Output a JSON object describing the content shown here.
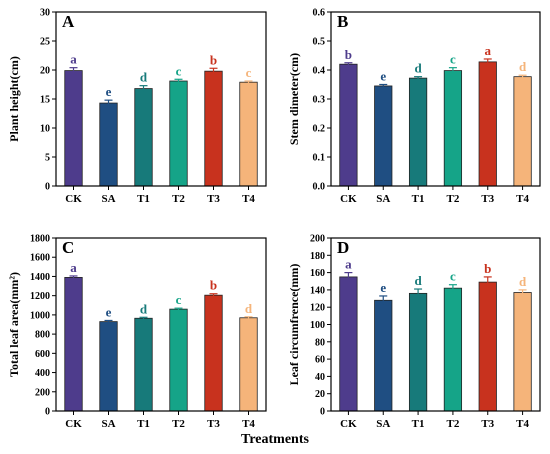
{
  "figure": {
    "x_title": "Treatments",
    "colors": [
      "#4e3c8c",
      "#1f4e82",
      "#177a7a",
      "#15a488",
      "#c8321e",
      "#f5b47a"
    ]
  },
  "chart_data": [
    {
      "type": "bar",
      "panel_label": "A",
      "categories": [
        "CK",
        "SA",
        "T1",
        "T2",
        "T3",
        "T4"
      ],
      "values": [
        19.9,
        14.3,
        16.8,
        18.1,
        19.8,
        17.9
      ],
      "errors": [
        0.5,
        0.5,
        0.5,
        0.3,
        0.5,
        0.2
      ],
      "significance": [
        "a",
        "e",
        "d",
        "c",
        "b",
        "c"
      ],
      "ylabel": "Plant height(cm)",
      "ylim": [
        0,
        30
      ],
      "yticks": [
        0,
        5,
        10,
        15,
        20,
        25,
        30
      ],
      "ytick_labels": [
        "0",
        "5",
        "10",
        "15",
        "20",
        "25",
        "30"
      ]
    },
    {
      "type": "bar",
      "panel_label": "B",
      "categories": [
        "CK",
        "SA",
        "T1",
        "T2",
        "T3",
        "T4"
      ],
      "values": [
        0.42,
        0.345,
        0.372,
        0.398,
        0.428,
        0.377
      ],
      "errors": [
        0.005,
        0.005,
        0.005,
        0.01,
        0.01,
        0.005
      ],
      "significance": [
        "b",
        "e",
        "d",
        "c",
        "a",
        "d"
      ],
      "ylabel": "Stem dimeter(cm)",
      "ylim": [
        0,
        0.6
      ],
      "yticks": [
        0,
        0.1,
        0.2,
        0.3,
        0.4,
        0.5,
        0.6
      ],
      "ytick_labels": [
        "0.0",
        "0.1",
        "0.2",
        "0.3",
        "0.4",
        "0.5",
        "0.6"
      ]
    },
    {
      "type": "bar",
      "panel_label": "C",
      "categories": [
        "CK",
        "SA",
        "T1",
        "T2",
        "T3",
        "T4"
      ],
      "values": [
        1390,
        930,
        965,
        1060,
        1205,
        970
      ],
      "errors": [
        15,
        12,
        10,
        10,
        15,
        10
      ],
      "significance": [
        "a",
        "e",
        "d",
        "c",
        "b",
        "d"
      ],
      "ylabel": "Total leaf area(mm²)",
      "ylim": [
        0,
        1800
      ],
      "yticks": [
        0,
        200,
        400,
        600,
        800,
        1000,
        1200,
        1400,
        1600,
        1800
      ],
      "ytick_labels": [
        "0",
        "200",
        "400",
        "600",
        "800",
        "1000",
        "1200",
        "1400",
        "1600",
        "1800"
      ]
    },
    {
      "type": "bar",
      "panel_label": "D",
      "categories": [
        "CK",
        "SA",
        "T1",
        "T2",
        "T3",
        "T4"
      ],
      "values": [
        155,
        128,
        136,
        142,
        149,
        137
      ],
      "errors": [
        5,
        5,
        5,
        4,
        6,
        3
      ],
      "significance": [
        "a",
        "e",
        "d",
        "c",
        "b",
        "d"
      ],
      "ylabel": "Leaf circumfrence(mm)",
      "ylim": [
        0,
        200
      ],
      "yticks": [
        0,
        20,
        40,
        60,
        80,
        100,
        120,
        140,
        160,
        180,
        200
      ],
      "ytick_labels": [
        "0",
        "20",
        "40",
        "60",
        "80",
        "100",
        "120",
        "140",
        "160",
        "180",
        "200"
      ]
    }
  ]
}
